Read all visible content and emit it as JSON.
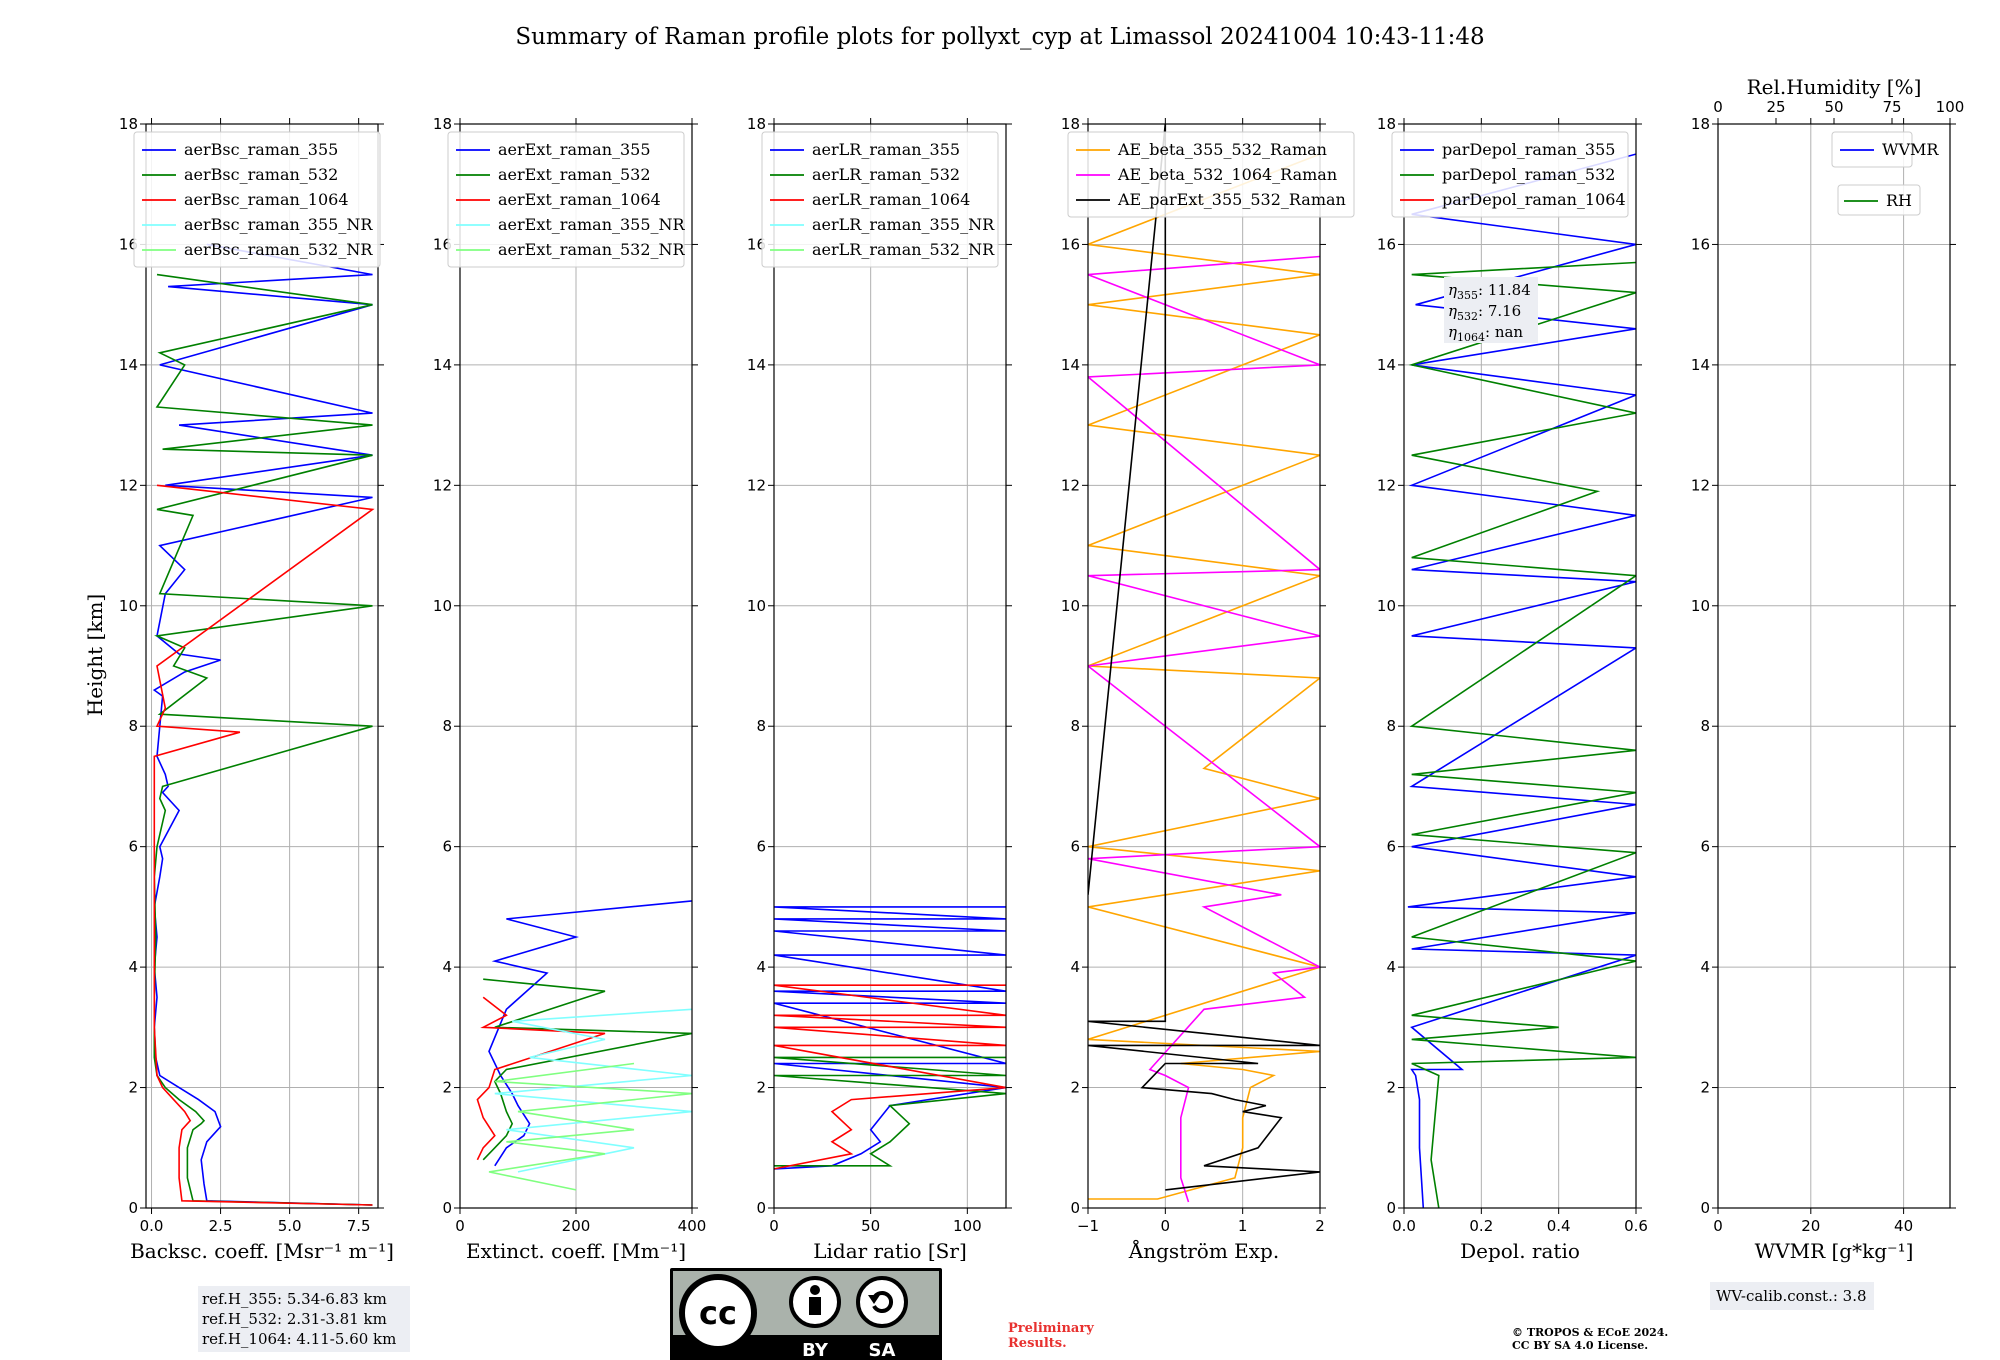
{
  "figure": {
    "title": "Summary of Raman profile plots for pollyxt_cyp at Limassol 20241004 10:43-11:48",
    "ylabel": "Height [km]"
  },
  "colors": {
    "blue": "#0000ff",
    "green": "#008000",
    "red": "#ff0000",
    "cyan": "#80ffff",
    "lightgreen": "#80ff80",
    "orange": "#ffa500",
    "magenta": "#ff00ff",
    "black": "#000000",
    "legend_edge": "#cccccc",
    "annot_bg": "#eceef3"
  },
  "chart_data": [
    {
      "type": "line",
      "name": "backscatter",
      "xlabel": "Backsc. coeff. [Msr⁻¹ m⁻¹]",
      "xlim": [
        -0.2,
        8.2
      ],
      "ylim": [
        0,
        18
      ],
      "xticks": [
        0,
        2.5,
        5,
        7.5
      ],
      "xticklabels": [
        "0.0",
        "2.5",
        "5.0",
        "7.5"
      ],
      "yticks": [
        0,
        2,
        4,
        6,
        8,
        10,
        12,
        14,
        16,
        18
      ],
      "legend": [
        "aerBsc_raman_355",
        "aerBsc_raman_532",
        "aerBsc_raman_1064",
        "aerBsc_raman_355_NR",
        "aerBsc_raman_532_NR"
      ],
      "legend_colors": [
        "blue",
        "green",
        "red",
        "cyan",
        "lightgreen"
      ],
      "series": [
        {
          "name": "aerBsc_raman_355",
          "color": "blue",
          "x": [
            8.0,
            2.0,
            1.9,
            1.8,
            2.0,
            2.4,
            2.5,
            2.3,
            1.7,
            1.0,
            0.3,
            0.15,
            0.1,
            0.2,
            0.1,
            0.2,
            0.1,
            0.3,
            0.4,
            0.3,
            1.0,
            0.4,
            0.6,
            0.5,
            0.2,
            0.4,
            0.1,
            1.2,
            2.5,
            1.0,
            0.2,
            0.5,
            1.2,
            0.3,
            8.0,
            0.5,
            8.0,
            1.0,
            8.0,
            0.3,
            8.0,
            0.6,
            8.0,
            2.0
          ],
          "y": [
            0.05,
            0.12,
            0.4,
            0.8,
            1.1,
            1.3,
            1.35,
            1.6,
            1.8,
            2.0,
            2.2,
            2.5,
            3.0,
            3.5,
            4.0,
            4.5,
            5.0,
            5.5,
            5.8,
            6.0,
            6.6,
            6.9,
            7.0,
            7.2,
            7.5,
            8.5,
            8.6,
            8.9,
            9.1,
            9.2,
            9.5,
            10.2,
            10.6,
            11.0,
            11.8,
            12.0,
            12.5,
            13.0,
            13.2,
            14.0,
            15.0,
            15.3,
            15.5,
            16.0
          ]
        },
        {
          "name": "aerBsc_raman_532",
          "color": "green",
          "x": [
            8.0,
            1.5,
            1.3,
            1.3,
            1.5,
            1.8,
            1.9,
            1.6,
            1.0,
            0.5,
            0.2,
            0.1,
            0.1,
            0.15,
            0.1,
            0.2,
            0.5,
            0.3,
            0.4,
            8.0,
            0.3,
            2.0,
            0.8,
            1.2,
            0.2,
            8.0,
            0.3,
            1.5,
            0.2,
            8.0,
            0.4,
            8.0,
            0.2,
            1.2,
            0.3,
            8.0,
            0.2
          ],
          "y": [
            0.05,
            0.12,
            0.5,
            1.0,
            1.3,
            1.4,
            1.45,
            1.6,
            1.8,
            2.0,
            2.2,
            2.5,
            3.5,
            4.5,
            5.5,
            6.0,
            6.6,
            6.8,
            7.0,
            8.0,
            8.2,
            8.8,
            9.0,
            9.3,
            9.5,
            10.0,
            10.2,
            11.5,
            11.6,
            12.5,
            12.6,
            13.0,
            13.3,
            14.0,
            14.2,
            15.0,
            15.5
          ]
        },
        {
          "name": "aerBsc_raman_1064",
          "color": "red",
          "x": [
            8.0,
            1.1,
            1.0,
            1.0,
            1.1,
            1.3,
            1.4,
            1.2,
            0.8,
            0.4,
            0.2,
            0.1,
            0.1,
            0.1,
            3.2,
            0.2,
            0.5,
            0.2,
            8.0,
            0.2
          ],
          "y": [
            0.05,
            0.12,
            0.5,
            1.0,
            1.3,
            1.4,
            1.45,
            1.6,
            1.8,
            2.0,
            2.2,
            3.0,
            5.0,
            7.5,
            7.9,
            8.0,
            8.3,
            9.0,
            11.6,
            12.0
          ]
        }
      ],
      "annotation": {
        "lines": [
          "ref.H_355: 5.34-6.83 km",
          "ref.H_532: 2.31-3.81 km",
          "ref.H_1064: 4.11-5.60 km"
        ]
      }
    },
    {
      "type": "line",
      "name": "extinction",
      "xlabel": "Extinct. coeff. [Mm⁻¹]",
      "xlim": [
        0,
        400
      ],
      "ylim": [
        0,
        18
      ],
      "xticks": [
        0,
        200,
        400
      ],
      "xticklabels": [
        "0",
        "200",
        "400"
      ],
      "yticks": [
        0,
        2,
        4,
        6,
        8,
        10,
        12,
        14,
        16,
        18
      ],
      "legend": [
        "aerExt_raman_355",
        "aerExt_raman_532",
        "aerExt_raman_1064",
        "aerExt_raman_355_NR",
        "aerExt_raman_532_NR"
      ],
      "legend_colors": [
        "blue",
        "green",
        "red",
        "cyan",
        "lightgreen"
      ],
      "series": [
        {
          "name": "aerExt_raman_355",
          "color": "blue",
          "x": [
            60,
            80,
            110,
            120,
            100,
            90,
            70,
            50,
            80,
            150,
            60,
            200,
            80,
            400
          ],
          "y": [
            0.7,
            1.0,
            1.2,
            1.4,
            1.7,
            1.9,
            2.2,
            2.6,
            3.3,
            3.9,
            4.1,
            4.5,
            4.8,
            5.1
          ]
        },
        {
          "name": "aerExt_raman_532",
          "color": "green",
          "x": [
            40,
            60,
            80,
            90,
            80,
            70,
            60,
            80,
            400,
            60,
            250,
            40
          ],
          "y": [
            0.8,
            1.0,
            1.2,
            1.4,
            1.6,
            1.9,
            2.1,
            2.3,
            2.9,
            3.0,
            3.6,
            3.8
          ]
        },
        {
          "name": "aerExt_raman_1064",
          "color": "red",
          "x": [
            30,
            40,
            60,
            40,
            30,
            50,
            60,
            250,
            40,
            80,
            40
          ],
          "y": [
            0.8,
            1.0,
            1.2,
            1.5,
            1.8,
            2.0,
            2.3,
            2.9,
            3.0,
            3.2,
            3.5
          ]
        },
        {
          "name": "aerExt_raman_355_NR",
          "color": "cyan",
          "x": [
            100,
            300,
            80,
            400,
            60,
            400,
            120,
            250,
            90,
            400
          ],
          "y": [
            0.6,
            1.0,
            1.3,
            1.6,
            1.9,
            2.2,
            2.5,
            2.8,
            3.1,
            3.3
          ]
        },
        {
          "name": "aerExt_raman_532_NR",
          "color": "lightgreen",
          "x": [
            200,
            50,
            250,
            80,
            300,
            100,
            400,
            60,
            300
          ],
          "y": [
            0.3,
            0.6,
            0.9,
            1.1,
            1.3,
            1.6,
            1.9,
            2.1,
            2.4
          ]
        }
      ]
    },
    {
      "type": "line",
      "name": "lidar_ratio",
      "xlabel": "Lidar ratio [Sr]",
      "xlim": [
        0,
        120
      ],
      "ylim": [
        0,
        18
      ],
      "xticks": [
        0,
        50,
        100
      ],
      "xticklabels": [
        "0",
        "50",
        "100"
      ],
      "yticks": [
        0,
        2,
        4,
        6,
        8,
        10,
        12,
        14,
        16,
        18
      ],
      "legend": [
        "aerLR_raman_355",
        "aerLR_raman_532",
        "aerLR_raman_1064",
        "aerLR_raman_355_NR",
        "aerLR_raman_532_NR"
      ],
      "legend_colors": [
        "blue",
        "green",
        "red",
        "cyan",
        "lightgreen"
      ],
      "series": [
        {
          "name": "aerLR_raman_355",
          "color": "blue",
          "x": [
            0,
            30,
            45,
            55,
            50,
            60,
            120,
            0,
            120,
            0,
            120,
            0,
            120,
            0,
            120,
            0,
            120,
            0,
            120,
            0,
            120
          ],
          "y": [
            0.65,
            0.7,
            0.9,
            1.1,
            1.3,
            1.7,
            2.0,
            2.4,
            2.4,
            3.4,
            3.4,
            3.6,
            3.6,
            4.2,
            4.2,
            4.6,
            4.6,
            4.8,
            4.8,
            5.0,
            5.0
          ]
        },
        {
          "name": "aerLR_raman_532",
          "color": "green",
          "x": [
            0,
            60,
            50,
            60,
            70,
            60,
            120,
            0,
            120,
            0,
            120
          ],
          "y": [
            0.7,
            0.7,
            0.9,
            1.1,
            1.4,
            1.7,
            1.9,
            2.2,
            2.2,
            2.5,
            2.5
          ]
        },
        {
          "name": "aerLR_raman_1064",
          "color": "red",
          "x": [
            0,
            40,
            30,
            40,
            30,
            40,
            120,
            0,
            120,
            0,
            120,
            0,
            120,
            0,
            120
          ],
          "y": [
            0.65,
            0.9,
            1.1,
            1.3,
            1.6,
            1.8,
            2.0,
            2.7,
            2.7,
            3.0,
            3.0,
            3.2,
            3.2,
            3.7,
            3.7
          ]
        }
      ]
    },
    {
      "type": "line",
      "name": "angstrom",
      "xlabel": "Ångström Exp.",
      "xlim": [
        -1,
        2
      ],
      "ylim": [
        0,
        18
      ],
      "xticks": [
        -1,
        0,
        1,
        2
      ],
      "xticklabels": [
        "−1",
        "0",
        "1",
        "2"
      ],
      "yticks": [
        0,
        2,
        4,
        6,
        8,
        10,
        12,
        14,
        16,
        18
      ],
      "legend": [
        "AE_beta_355_532_Raman",
        "AE_beta_532_1064_Raman",
        "AE_parExt_355_532_Raman"
      ],
      "legend_colors": [
        "orange",
        "magenta",
        "black"
      ],
      "series": [
        {
          "name": "AE_beta_355_532_Raman",
          "color": "orange",
          "x": [
            -1,
            -0.1,
            0.9,
            1.0,
            1.0,
            1.1,
            1.4,
            1.0,
            0.2,
            2.0,
            -1,
            2.0,
            -1,
            2.0,
            -1,
            2.0,
            0.5,
            2.0,
            -1,
            2.0,
            -1,
            2.0,
            -1,
            2.0,
            -1,
            2.0,
            -1,
            2.0
          ],
          "y": [
            0.15,
            0.15,
            0.5,
            1.0,
            1.5,
            2.0,
            2.2,
            2.3,
            2.4,
            2.6,
            2.8,
            4.0,
            5.0,
            5.6,
            6.0,
            6.8,
            7.3,
            8.8,
            9.0,
            10.5,
            11.0,
            12.5,
            13.0,
            14.5,
            15.0,
            15.5,
            16.0,
            17.5
          ]
        },
        {
          "name": "AE_beta_532_1064_Raman",
          "color": "magenta",
          "x": [
            0.3,
            0.2,
            0.2,
            0.2,
            0.3,
            0.0,
            -0.2,
            0.5,
            1.8,
            1.4,
            2.0,
            0.5,
            1.5,
            -1,
            2.0,
            -1,
            2.0,
            -1,
            2.0,
            -1,
            2.0,
            -1,
            2.0
          ],
          "y": [
            0.1,
            0.5,
            1.0,
            1.5,
            2.0,
            2.2,
            2.3,
            3.3,
            3.5,
            3.9,
            4.0,
            5.0,
            5.2,
            5.8,
            6.0,
            9.0,
            9.5,
            10.5,
            10.6,
            13.8,
            14.0,
            15.5,
            15.8
          ]
        },
        {
          "name": "AE_parExt_355_532_Raman",
          "color": "black",
          "x": [
            0.0,
            2.0,
            0.5,
            1.2,
            1.5,
            1.0,
            1.3,
            0.9,
            0.6,
            -0.3,
            0.0,
            1.2,
            -1,
            2.0,
            -1,
            0.0,
            0.0,
            0.0,
            -1
          ],
          "y": [
            0.3,
            0.6,
            0.7,
            1.0,
            1.5,
            1.6,
            1.7,
            1.8,
            1.9,
            2.0,
            2.4,
            2.4,
            2.7,
            2.7,
            3.1,
            3.1,
            5.3,
            18.0,
            5.2
          ]
        }
      ]
    },
    {
      "type": "line",
      "name": "depolarization",
      "xlabel": "Depol. ratio",
      "xlim": [
        0,
        0.6
      ],
      "ylim": [
        0,
        18
      ],
      "xticks": [
        0,
        0.2,
        0.4,
        0.6
      ],
      "xticklabels": [
        "0.0",
        "0.2",
        "0.4",
        "0.6"
      ],
      "yticks": [
        0,
        2,
        4,
        6,
        8,
        10,
        12,
        14,
        16,
        18
      ],
      "legend": [
        "parDepol_raman_355",
        "parDepol_raman_532",
        "parDepol_raman_1064"
      ],
      "legend_colors": [
        "blue",
        "green",
        "red"
      ],
      "series": [
        {
          "name": "parDepol_raman_355",
          "color": "blue",
          "x": [
            0.05,
            0.04,
            0.04,
            0.03,
            0.02,
            0.15,
            0.02,
            0.6,
            0.02,
            0.6,
            0.01,
            0.6,
            0.02,
            0.6,
            0.02,
            0.6,
            0.02,
            0.6,
            0.02,
            0.6,
            0.02,
            0.6,
            0.02,
            0.6,
            0.03,
            0.6,
            0.02,
            0.6
          ],
          "y": [
            0.0,
            1.0,
            1.8,
            2.2,
            2.3,
            2.3,
            3.0,
            4.2,
            4.3,
            4.9,
            5.0,
            5.5,
            6.0,
            6.7,
            7.0,
            9.3,
            9.5,
            10.4,
            10.6,
            11.5,
            12.0,
            13.5,
            14.0,
            14.6,
            15.0,
            16.0,
            16.5,
            17.5
          ]
        },
        {
          "name": "parDepol_raman_532",
          "color": "green",
          "x": [
            0.09,
            0.07,
            0.08,
            0.09,
            0.02,
            0.6,
            0.02,
            0.4,
            0.02,
            0.6,
            0.02,
            0.6,
            0.02,
            0.6,
            0.02,
            0.6,
            0.02,
            0.6,
            0.02,
            0.5,
            0.02,
            0.6,
            0.02,
            0.6,
            0.02,
            0.6
          ],
          "y": [
            0.0,
            0.8,
            1.5,
            2.2,
            2.4,
            2.5,
            2.8,
            3.0,
            3.2,
            4.1,
            4.5,
            5.9,
            6.2,
            6.9,
            7.2,
            7.6,
            8.0,
            10.5,
            10.8,
            11.9,
            12.5,
            13.2,
            14.0,
            15.2,
            15.5,
            15.7
          ]
        }
      ],
      "annotation": {
        "lines": [
          {
            "sym": "η",
            "sub": "355",
            "val": ": 11.84"
          },
          {
            "sym": "η",
            "sub": "532",
            "val": ": 7.16"
          },
          {
            "sym": "η",
            "sub": "1064",
            "val": ": nan"
          }
        ]
      }
    },
    {
      "type": "line",
      "name": "water_vapor",
      "xlabel": "WVMR [g*kg⁻¹]",
      "xlim": [
        0,
        50
      ],
      "ylim": [
        0,
        18
      ],
      "xticks": [
        0,
        20,
        40
      ],
      "xticklabels": [
        "0",
        "20",
        "40"
      ],
      "x2label": "Rel.Humidity [%]",
      "x2lim": [
        0,
        100
      ],
      "x2ticks": [
        0,
        25,
        50,
        75,
        100
      ],
      "x2ticklabels": [
        "0",
        "25",
        "50",
        "75",
        "100"
      ],
      "yticks": [
        0,
        2,
        4,
        6,
        8,
        10,
        12,
        14,
        16,
        18
      ],
      "legend": [
        "WVMR"
      ],
      "legend_colors": [
        "blue"
      ],
      "legend2": [
        "RH"
      ],
      "legend2_colors": [
        "green"
      ],
      "series": [],
      "annotation": {
        "lines": [
          "WV-calib.const.: 3.8"
        ]
      }
    }
  ],
  "footer": {
    "license_badge": {
      "cc": "cc",
      "by": "BY",
      "sa": "SA"
    },
    "preliminary": [
      "Preliminary",
      "Results."
    ],
    "copyright": [
      "© TROPOS & ECoE 2024.",
      "CC BY SA 4.0 License."
    ]
  }
}
